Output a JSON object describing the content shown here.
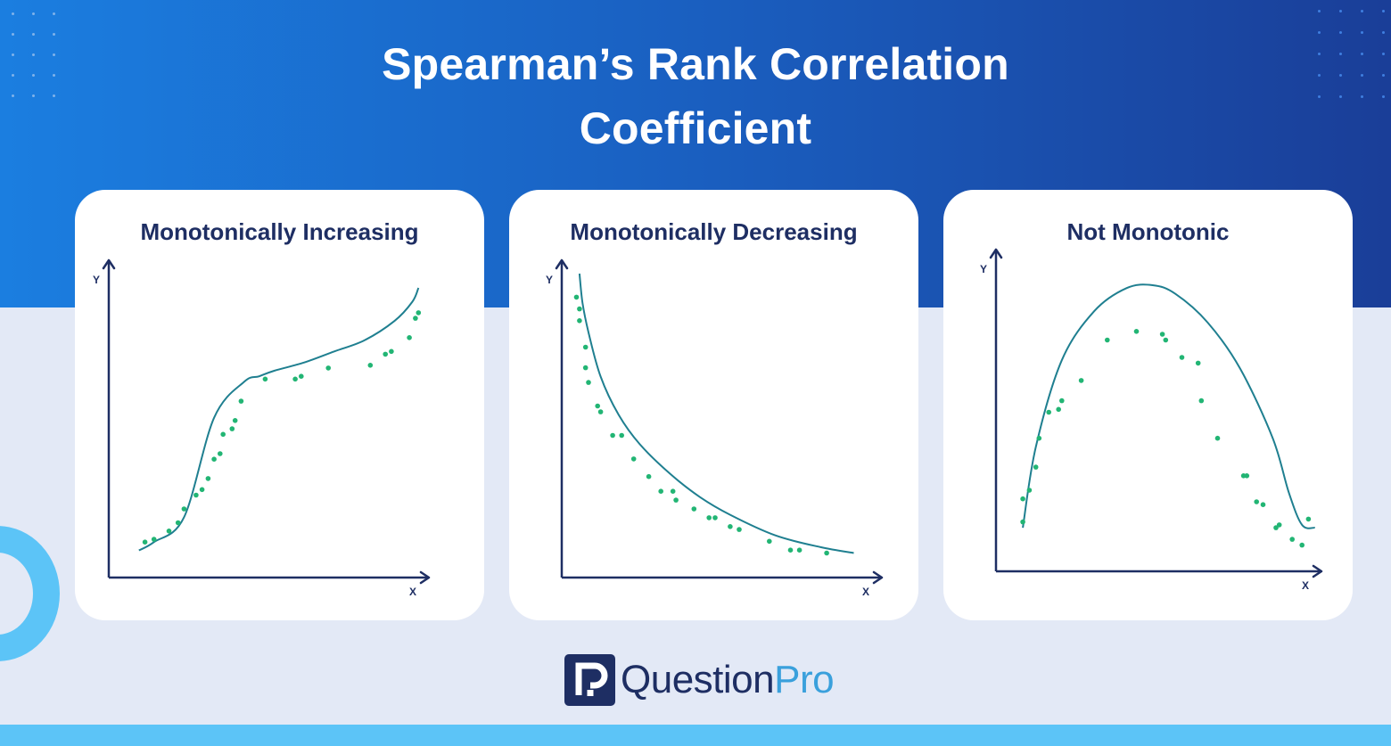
{
  "title": {
    "line1": "Spearman’s Rank Correlation",
    "line2": "Coefficient"
  },
  "colors": {
    "hero_start": "#1b7ee0",
    "hero_end": "#1a3e98",
    "page_bg": "#e3e9f6",
    "accent_light_blue": "#5cc4f7",
    "navy": "#1e2e63",
    "curve": "#1f7f90",
    "points": "#22b574"
  },
  "chart_data": [
    {
      "type": "scatter",
      "title": "Monotonically Increasing",
      "xlabel": "X",
      "ylabel": "Y",
      "xlim": [
        0,
        100
      ],
      "ylim": [
        0,
        100
      ],
      "grid": false,
      "fit_curve": {
        "x": [
          5,
          10,
          20,
          30,
          40,
          45,
          50,
          60,
          70,
          80,
          90,
          96,
          98
        ],
        "y": [
          5,
          8,
          17,
          53,
          66,
          68,
          70,
          73,
          77,
          81,
          88,
          95,
          100
        ]
      },
      "points": {
        "x": [
          7,
          10,
          15,
          18,
          20,
          24,
          26,
          28,
          30,
          32,
          33,
          36,
          37,
          39,
          47,
          57,
          59,
          68,
          82,
          87,
          89,
          95,
          97,
          98
        ],
        "y": [
          8,
          9,
          12,
          15,
          20,
          25,
          27,
          31,
          38,
          40,
          47,
          49,
          52,
          59,
          67,
          67,
          68,
          71,
          72,
          76,
          77,
          82,
          89,
          91
        ]
      }
    },
    {
      "type": "scatter",
      "title": "Monotonically Decreasing",
      "xlabel": "X",
      "ylabel": "Y",
      "xlim": [
        0,
        100
      ],
      "ylim": [
        0,
        100
      ],
      "grid": false,
      "fit_curve": {
        "x": [
          5,
          6,
          8,
          12,
          18,
          25,
          35,
          45,
          55,
          70,
          85,
          96
        ],
        "y": [
          100,
          90,
          80,
          65,
          52,
          42,
          32,
          24,
          18,
          11,
          7,
          5
        ]
      },
      "points": {
        "x": [
          4,
          5,
          5,
          7,
          7,
          8,
          11,
          12,
          16,
          19,
          23,
          28,
          32,
          36,
          37,
          43,
          48,
          50,
          55,
          58,
          68,
          75,
          78,
          87
        ],
        "y": [
          92,
          84,
          88,
          75,
          68,
          63,
          55,
          53,
          45,
          45,
          37,
          31,
          26,
          26,
          23,
          20,
          17,
          17,
          14,
          13,
          9,
          6,
          6,
          5
        ]
      }
    },
    {
      "type": "scatter",
      "title": "Not Monotonic",
      "xlabel": "X",
      "ylabel": "Y",
      "xlim": [
        0,
        100
      ],
      "ylim": [
        0,
        100
      ],
      "grid": false,
      "fit_curve": {
        "x": [
          8,
          12,
          20,
          30,
          40,
          48,
          55,
          65,
          75,
          85,
          90,
          94,
          98
        ],
        "y": [
          12,
          40,
          70,
          87,
          95,
          96,
          93,
          83,
          67,
          43,
          24,
          13,
          12
        ]
      },
      "points": {
        "x": [
          8,
          8,
          10,
          12,
          13,
          16,
          19,
          20,
          26,
          34,
          43,
          51,
          52,
          57,
          62,
          63,
          68,
          76,
          77,
          80,
          82,
          86,
          87,
          91,
          94,
          96
        ],
        "y": [
          14,
          22,
          25,
          33,
          43,
          52,
          53,
          56,
          63,
          77,
          80,
          79,
          77,
          71,
          69,
          56,
          43,
          30,
          30,
          21,
          20,
          12,
          13,
          8,
          6,
          15
        ]
      }
    }
  ],
  "logo": {
    "brand_a": "Question",
    "brand_b": "Pro"
  }
}
